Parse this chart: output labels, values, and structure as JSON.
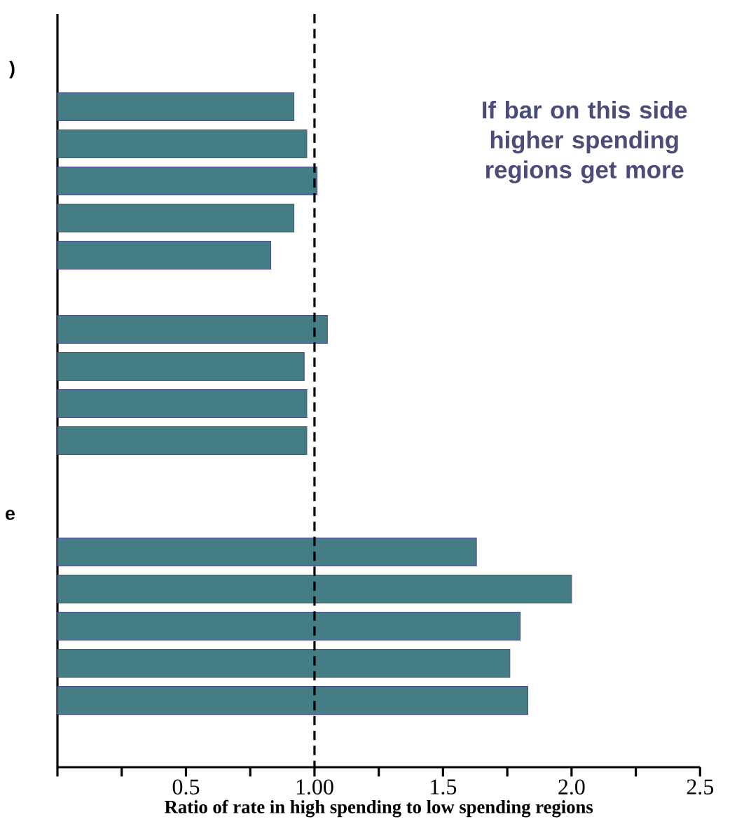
{
  "chart_data": {
    "type": "bar",
    "orientation": "horizontal",
    "xlabel": "Ratio of rate in high spending to low spending regions",
    "categories": [
      ")",
      null,
      null,
      null,
      null,
      null,
      null,
      null,
      null,
      null,
      null,
      null,
      "e",
      null,
      null,
      null,
      null,
      null
    ],
    "values": [
      null,
      0.92,
      0.97,
      1.01,
      0.92,
      0.83,
      null,
      1.05,
      0.96,
      0.97,
      0.97,
      null,
      null,
      1.63,
      2.0,
      1.8,
      1.76,
      1.83
    ],
    "color": "#457d84",
    "xlim": [
      0,
      2.5
    ],
    "xticks": [
      {
        "value": 0,
        "label": null
      },
      0.5,
      {
        "value": 1.0,
        "label": "1.00"
      },
      1.5,
      {
        "value": 2.0,
        "label": "2.0"
      },
      2.5
    ],
    "ref_lines": [
      {
        "axis": "x",
        "value": 1.0,
        "line_style": "dashed",
        "color": "#000000"
      }
    ],
    "annotations": [
      "If bar on this side\nhigher spending\nregions get more"
    ],
    "grid": false
  }
}
